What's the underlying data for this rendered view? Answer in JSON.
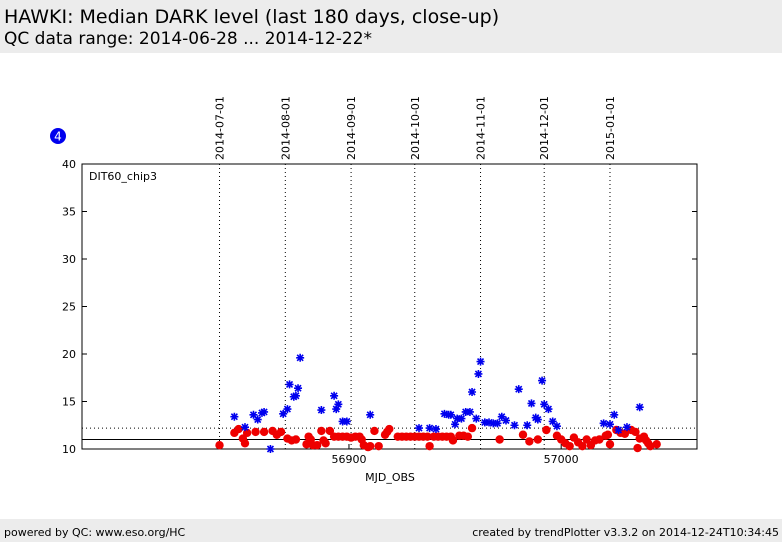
{
  "header": {
    "title": "HAWKI: Median DARK level (last 180 days, close-up)",
    "subtitle": "QC data range: 2014-06-28 ... 2014-12-22*"
  },
  "badge": {
    "value": "4",
    "color": "#0000ee"
  },
  "footer": {
    "left": "powered by QC: www.eso.org/HC",
    "right": "created by trendPlotter v3.3.2 on 2014-12-24T10:34:45"
  },
  "chart_data": {
    "type": "scatter",
    "title": "",
    "panel_label": "DIT60_chip3",
    "xlabel": "MJD_OBS",
    "ylabel": "",
    "xlim": [
      56774.2,
      57064
    ],
    "ylim": [
      10,
      40
    ],
    "x_ticks": [
      56900,
      57000
    ],
    "y_ticks": [
      10,
      15,
      20,
      25,
      30,
      35,
      40
    ],
    "date_markers": [
      {
        "label": "2014-07-01",
        "mjd": 56839
      },
      {
        "label": "2014-08-01",
        "mjd": 56870
      },
      {
        "label": "2014-09-01",
        "mjd": 56901
      },
      {
        "label": "2014-10-01",
        "mjd": 56931
      },
      {
        "label": "2014-11-01",
        "mjd": 56962
      },
      {
        "label": "2014-12-01",
        "mjd": 56992
      },
      {
        "label": "2015-01-01",
        "mjd": 57023
      }
    ],
    "grid": false,
    "reference_lines": [
      {
        "y": 12.2,
        "style": "dotted",
        "color": "#000000"
      },
      {
        "y": 11.0,
        "style": "solid",
        "color": "#000000"
      }
    ],
    "series": [
      {
        "marker": "circle",
        "color": "#ee0000",
        "points": [
          [
            56839,
            10.4
          ],
          [
            56846,
            11.7
          ],
          [
            56848,
            12.1
          ],
          [
            56850,
            11.1
          ],
          [
            56851,
            10.6
          ],
          [
            56852,
            11.7
          ],
          [
            56856,
            11.8
          ],
          [
            56860,
            11.8
          ],
          [
            56864,
            11.9
          ],
          [
            56866,
            11.5
          ],
          [
            56868,
            11.8
          ],
          [
            56871,
            11.1
          ],
          [
            56873,
            10.9
          ],
          [
            56875,
            11.0
          ],
          [
            56880,
            10.5
          ],
          [
            56881,
            11.3
          ],
          [
            56882,
            11.0
          ],
          [
            56883,
            10.4
          ],
          [
            56885,
            10.4
          ],
          [
            56887,
            11.9
          ],
          [
            56888,
            10.9
          ],
          [
            56889,
            10.6
          ],
          [
            56891,
            11.9
          ],
          [
            56893,
            11.3
          ],
          [
            56895,
            11.3
          ],
          [
            56897,
            11.3
          ],
          [
            56899,
            11.3
          ],
          [
            56901,
            11.2
          ],
          [
            56903,
            11.3
          ],
          [
            56905,
            11.3
          ],
          [
            56906,
            11.0
          ],
          [
            56907,
            10.4
          ],
          [
            56909,
            10.2
          ],
          [
            56910,
            10.3
          ],
          [
            56912,
            11.9
          ],
          [
            56914,
            10.3
          ],
          [
            56917,
            11.5
          ],
          [
            56918,
            11.8
          ],
          [
            56919,
            12.1
          ],
          [
            56923,
            11.3
          ],
          [
            56925,
            11.3
          ],
          [
            56927,
            11.3
          ],
          [
            56929,
            11.3
          ],
          [
            56931,
            11.3
          ],
          [
            56933,
            11.3
          ],
          [
            56935,
            11.3
          ],
          [
            56937,
            11.3
          ],
          [
            56938,
            10.3
          ],
          [
            56940,
            11.3
          ],
          [
            56942,
            11.3
          ],
          [
            56944,
            11.3
          ],
          [
            56946,
            11.3
          ],
          [
            56948,
            11.3
          ],
          [
            56949,
            10.9
          ],
          [
            56952,
            11.4
          ],
          [
            56954,
            11.4
          ],
          [
            56956,
            11.3
          ],
          [
            56958,
            12.2
          ],
          [
            56971,
            11.0
          ],
          [
            56982,
            11.5
          ],
          [
            56985,
            10.8
          ],
          [
            56989,
            11.0
          ],
          [
            56993,
            12.0
          ],
          [
            56998,
            11.4
          ],
          [
            57000,
            11.0
          ],
          [
            57002,
            10.6
          ],
          [
            57004,
            10.3
          ],
          [
            57006,
            11.2
          ],
          [
            57008,
            10.7
          ],
          [
            57010,
            10.3
          ],
          [
            57012,
            11.0
          ],
          [
            57014,
            10.4
          ],
          [
            57016,
            10.9
          ],
          [
            57018,
            11.0
          ],
          [
            57021,
            11.4
          ],
          [
            57022,
            11.5
          ],
          [
            57023,
            10.5
          ],
          [
            57026,
            12.0
          ],
          [
            57028,
            11.7
          ],
          [
            57030,
            11.6
          ],
          [
            57033,
            12.0
          ],
          [
            57035,
            11.8
          ],
          [
            57036,
            10.1
          ],
          [
            57037,
            11.1
          ],
          [
            57039,
            11.3
          ],
          [
            57040,
            10.9
          ],
          [
            57041,
            10.6
          ],
          [
            57042,
            10.3
          ],
          [
            57045,
            10.5
          ]
        ]
      },
      {
        "marker": "asterisk",
        "color": "#0000ee",
        "points": [
          [
            56846,
            13.4
          ],
          [
            56851,
            12.3
          ],
          [
            56855,
            13.6
          ],
          [
            56857,
            13.1
          ],
          [
            56859,
            13.8
          ],
          [
            56860,
            13.9
          ],
          [
            56863,
            10.0
          ],
          [
            56869,
            13.7
          ],
          [
            56871,
            14.2
          ],
          [
            56872,
            16.8
          ],
          [
            56874,
            15.5
          ],
          [
            56875,
            15.6
          ],
          [
            56876,
            16.4
          ],
          [
            56877,
            19.6
          ],
          [
            56887,
            14.1
          ],
          [
            56893,
            15.6
          ],
          [
            56894,
            14.2
          ],
          [
            56895,
            14.7
          ],
          [
            56897,
            12.9
          ],
          [
            56899,
            12.9
          ],
          [
            56910,
            13.6
          ],
          [
            56933,
            12.2
          ],
          [
            56938,
            12.2
          ],
          [
            56941,
            12.1
          ],
          [
            56945,
            13.7
          ],
          [
            56947,
            13.6
          ],
          [
            56948,
            13.6
          ],
          [
            56950,
            12.6
          ],
          [
            56951,
            13.2
          ],
          [
            56953,
            13.2
          ],
          [
            56955,
            13.9
          ],
          [
            56957,
            13.9
          ],
          [
            56958,
            16.0
          ],
          [
            56960,
            13.2
          ],
          [
            56961,
            17.9
          ],
          [
            56962,
            19.2
          ],
          [
            56964,
            12.8
          ],
          [
            56966,
            12.8
          ],
          [
            56968,
            12.7
          ],
          [
            56970,
            12.7
          ],
          [
            56972,
            13.4
          ],
          [
            56974,
            13.0
          ],
          [
            56978,
            12.5
          ],
          [
            56980,
            16.3
          ],
          [
            56984,
            12.5
          ],
          [
            56986,
            14.8
          ],
          [
            56988,
            13.3
          ],
          [
            56989,
            13.1
          ],
          [
            56991,
            17.2
          ],
          [
            56992,
            14.7
          ],
          [
            56994,
            14.2
          ],
          [
            56996,
            12.9
          ],
          [
            56998,
            12.4
          ],
          [
            57020,
            12.7
          ],
          [
            57023,
            12.6
          ],
          [
            57025,
            13.6
          ],
          [
            57027,
            12.0
          ],
          [
            57031,
            12.3
          ],
          [
            57037,
            14.4
          ]
        ]
      }
    ]
  }
}
